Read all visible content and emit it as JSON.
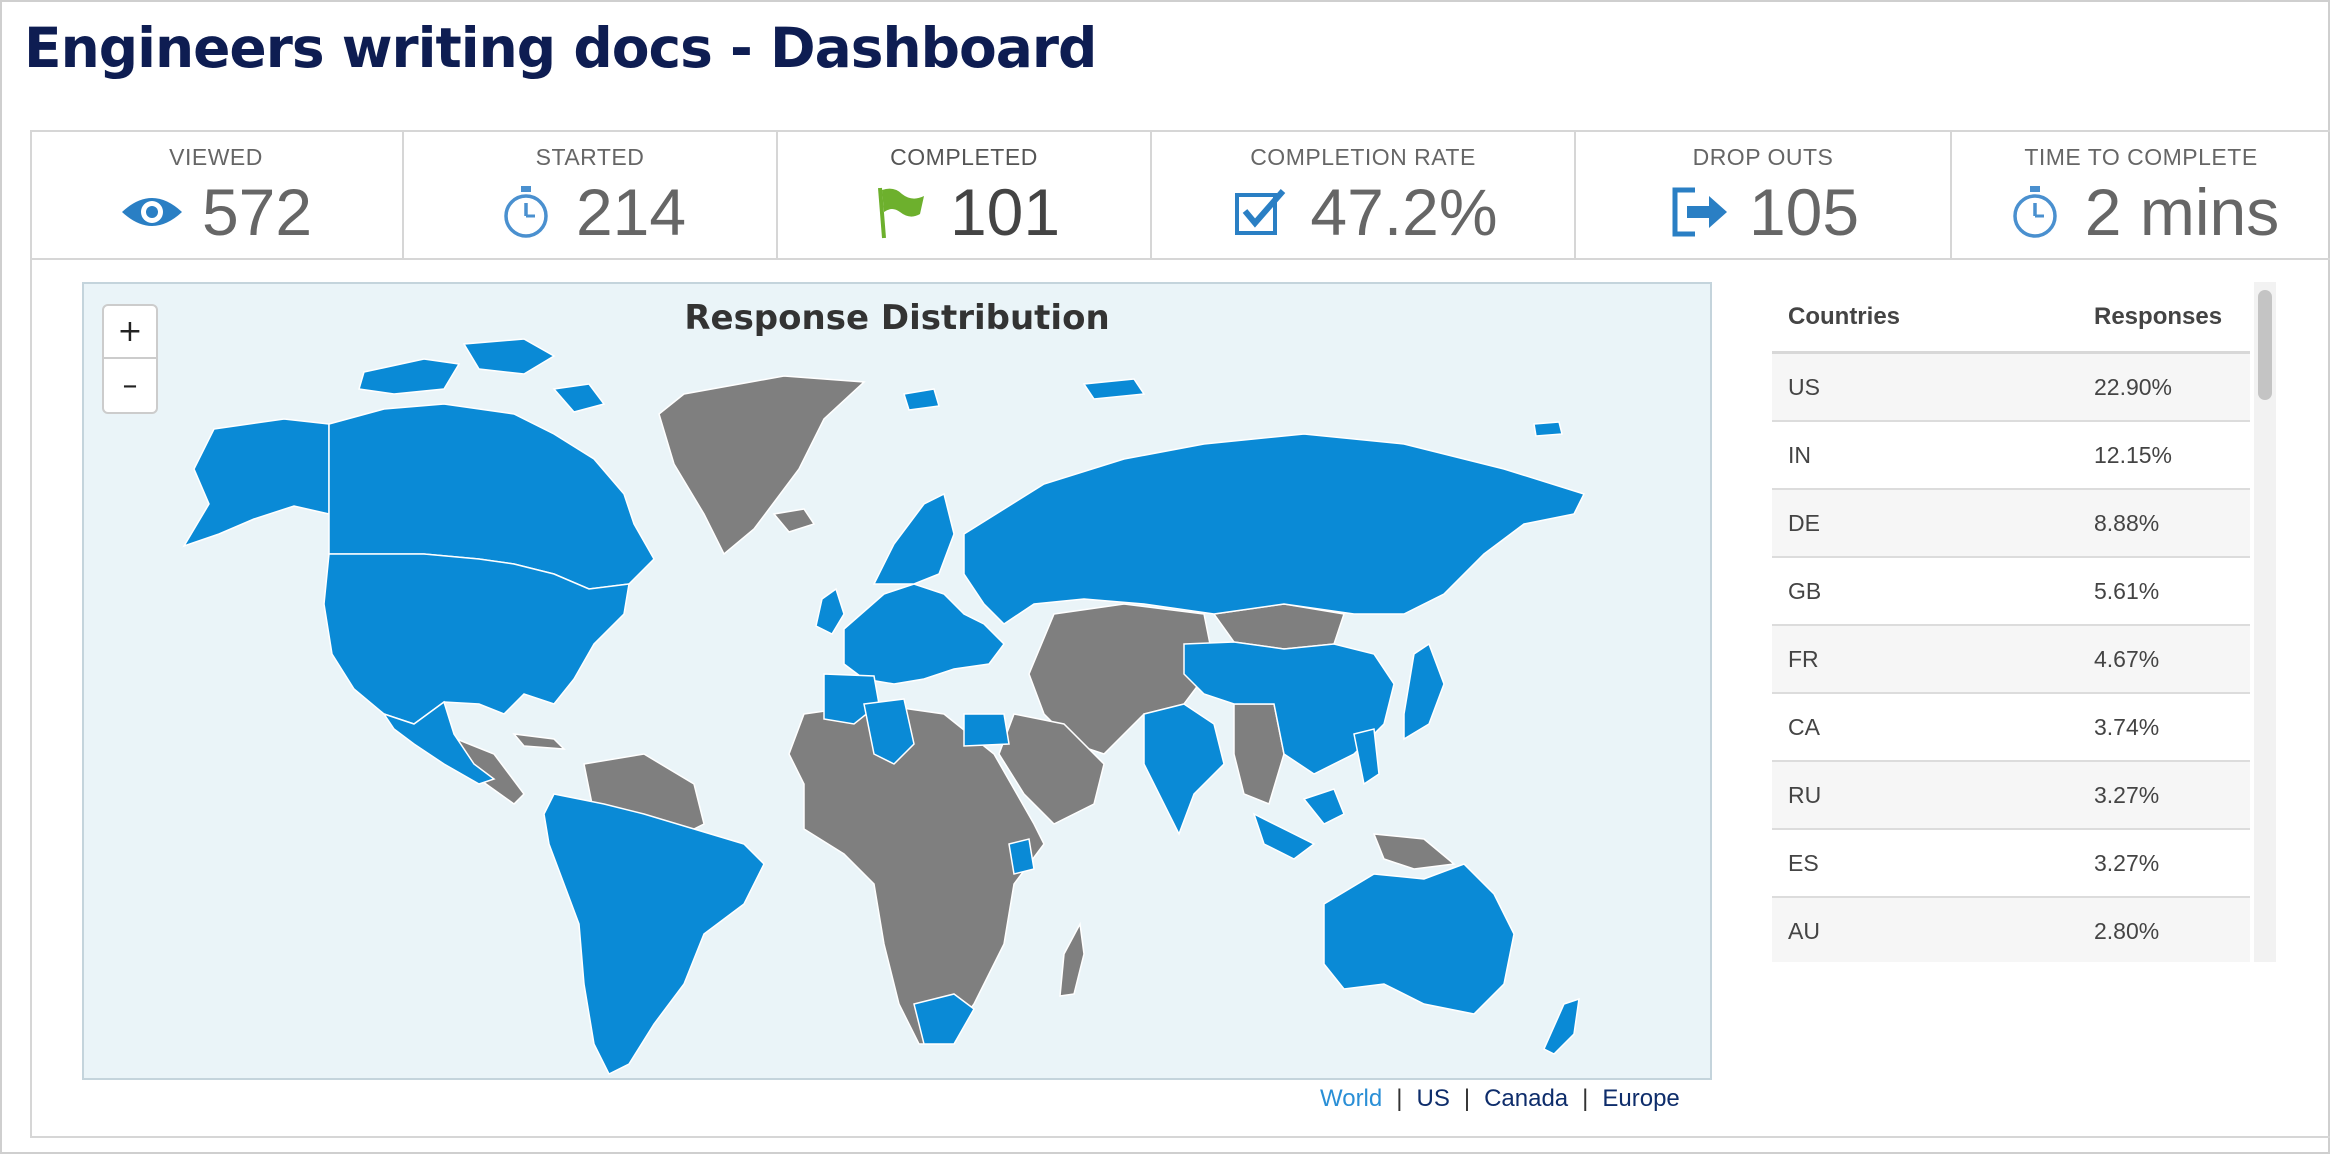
{
  "page": {
    "title": "Engineers writing docs - Dashboard"
  },
  "stats": [
    {
      "label": "VIEWED",
      "value": "572",
      "icon": "eye-icon"
    },
    {
      "label": "STARTED",
      "value": "214",
      "icon": "stopwatch-icon"
    },
    {
      "label": "COMPLETED",
      "value": "101",
      "icon": "flag-icon"
    },
    {
      "label": "COMPLETION RATE",
      "value": "47.2%",
      "icon": "checkbox-icon"
    },
    {
      "label": "DROP OUTS",
      "value": "105",
      "icon": "exit-icon"
    },
    {
      "label": "TIME TO COMPLETE",
      "value": "2 mins",
      "icon": "stopwatch-icon"
    }
  ],
  "map": {
    "title": "Response Distribution",
    "zoom_in": "+",
    "zoom_out": "–",
    "colors": {
      "ocean": "#eaf4f8",
      "responded": "#0a8ad6",
      "no_response": "#7f7f7f"
    },
    "links": [
      {
        "label": "World",
        "active": true
      },
      {
        "label": "US",
        "active": false
      },
      {
        "label": "Canada",
        "active": false
      },
      {
        "label": "Europe",
        "active": false
      }
    ],
    "separator": "|"
  },
  "table": {
    "headers": {
      "country": "Countries",
      "responses": "Responses"
    },
    "rows": [
      {
        "country": "US",
        "responses": "22.90%"
      },
      {
        "country": "IN",
        "responses": "12.15%"
      },
      {
        "country": "DE",
        "responses": "8.88%"
      },
      {
        "country": "GB",
        "responses": "5.61%"
      },
      {
        "country": "FR",
        "responses": "4.67%"
      },
      {
        "country": "CA",
        "responses": "3.74%"
      },
      {
        "country": "RU",
        "responses": "3.27%"
      },
      {
        "country": "ES",
        "responses": "3.27%"
      },
      {
        "country": "AU",
        "responses": "2.80%"
      }
    ]
  }
}
